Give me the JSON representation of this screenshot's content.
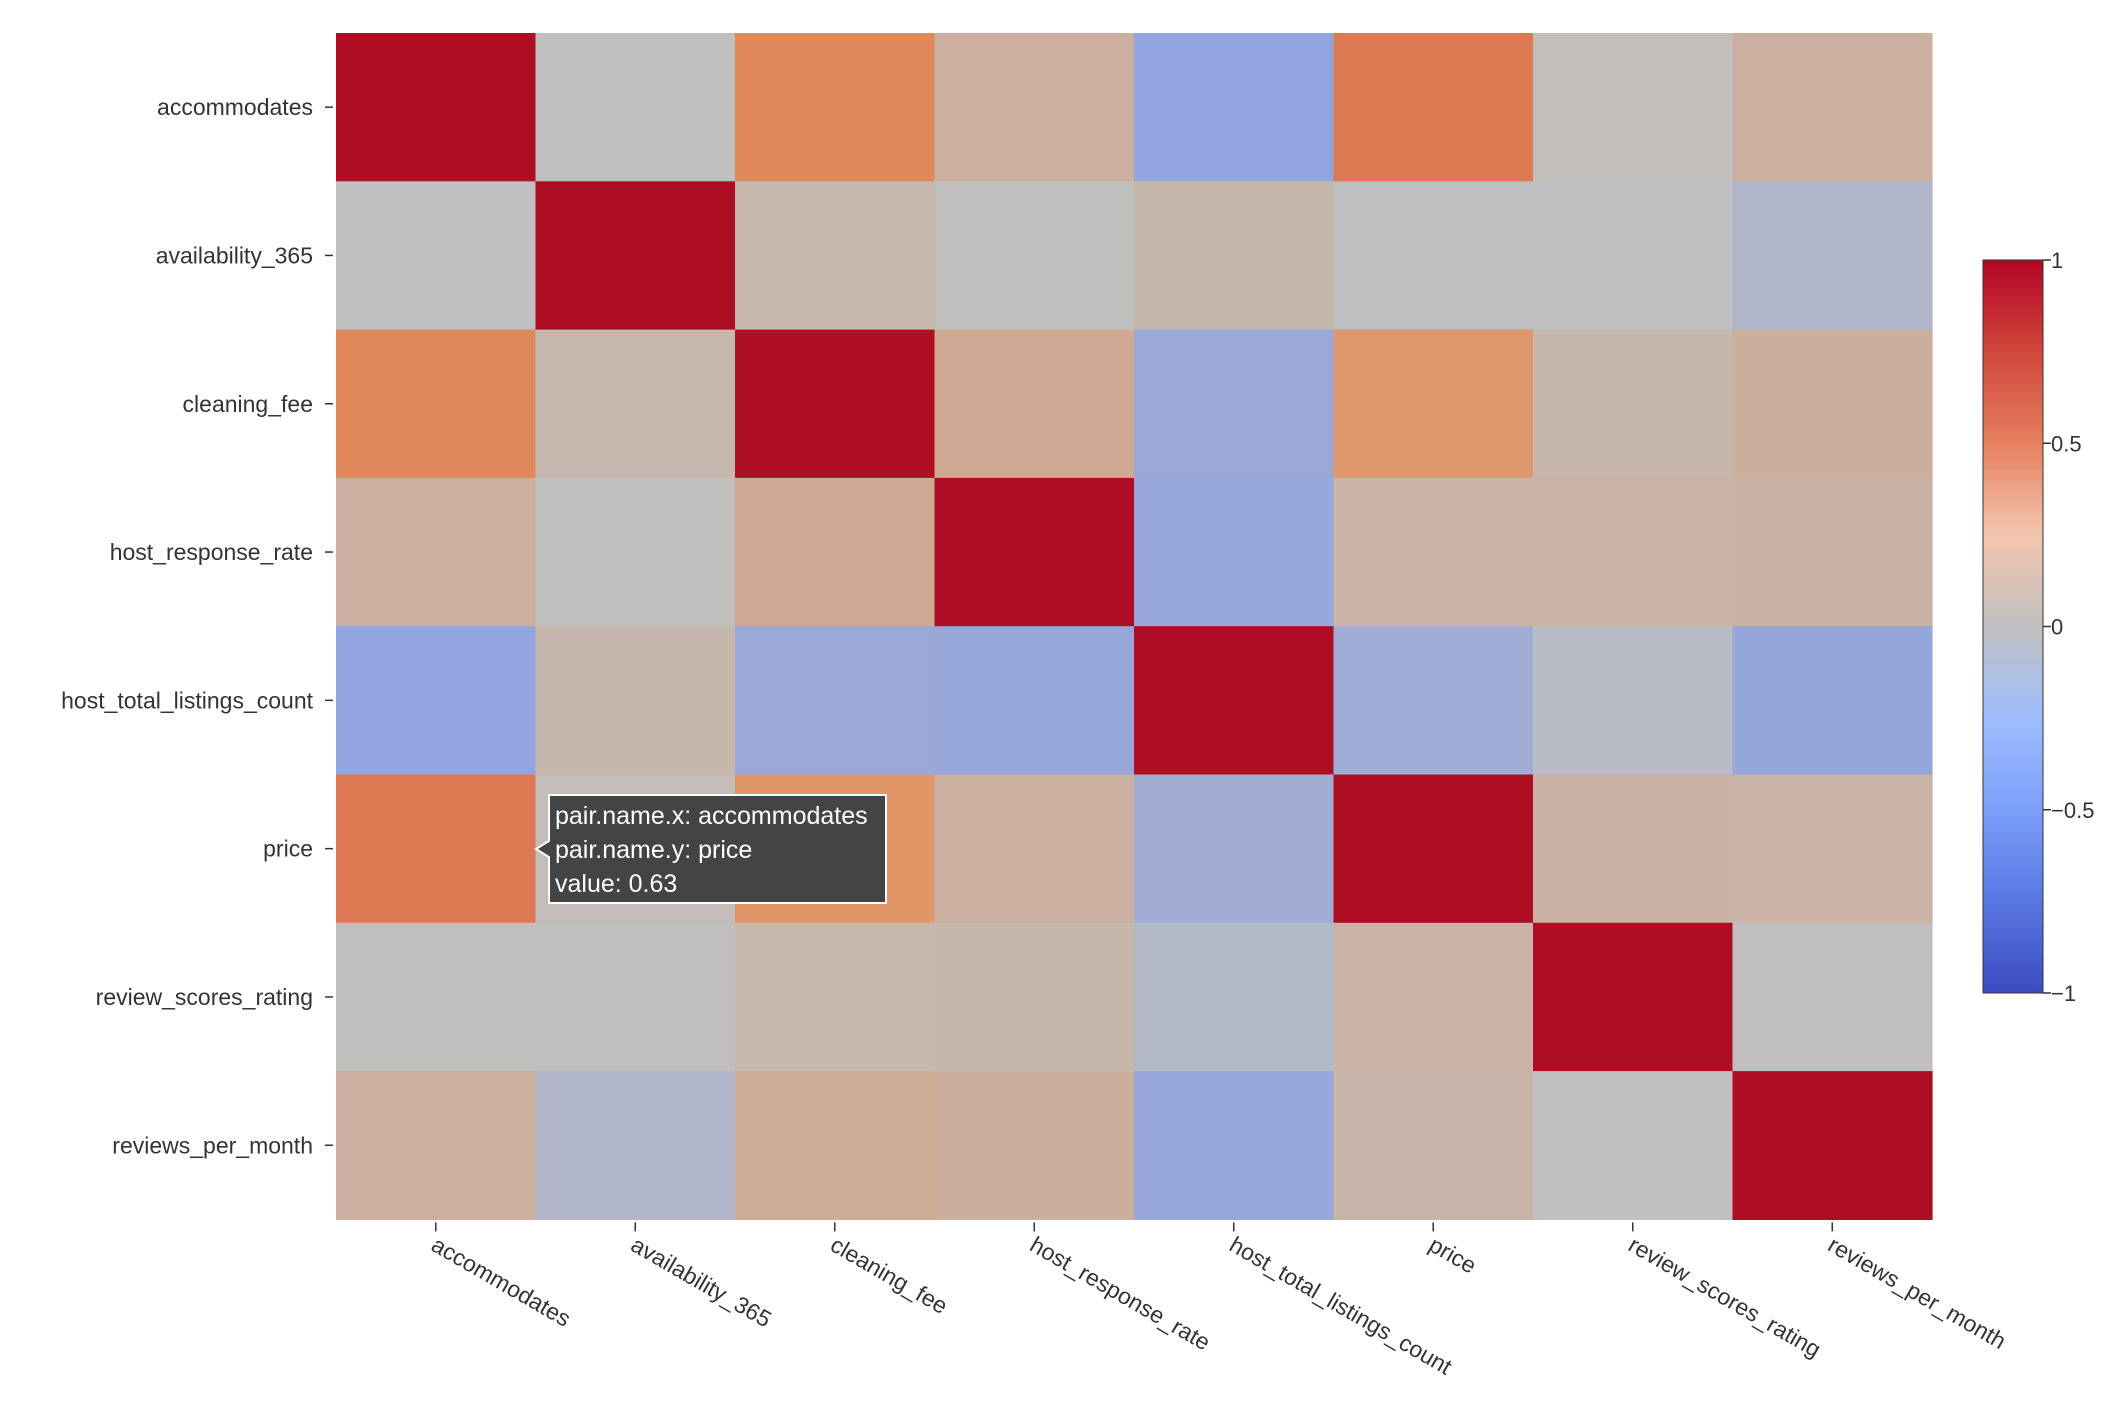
{
  "chart_data": {
    "type": "heatmap",
    "title": "",
    "xlabel": "",
    "ylabel": "",
    "variables": [
      "accommodates",
      "availability_365",
      "cleaning_fee",
      "host_response_rate",
      "host_total_listings_count",
      "price",
      "review_scores_rating",
      "reviews_per_month"
    ],
    "matrix": [
      [
        1.0,
        0.0,
        0.56,
        0.16,
        -0.28,
        0.63,
        0.02,
        0.15
      ],
      [
        0.0,
        1.0,
        0.08,
        0.01,
        0.09,
        -0.01,
        -0.01,
        -0.1
      ],
      [
        0.56,
        0.08,
        1.0,
        0.22,
        -0.22,
        0.44,
        0.1,
        0.17
      ],
      [
        0.16,
        0.01,
        0.22,
        1.0,
        -0.24,
        0.12,
        0.12,
        0.13
      ],
      [
        -0.28,
        0.09,
        -0.22,
        -0.24,
        1.0,
        -0.19,
        -0.04,
        -0.25
      ],
      [
        0.63,
        0.04,
        0.47,
        0.15,
        -0.18,
        1.0,
        0.14,
        0.12
      ],
      [
        0.01,
        0.01,
        0.08,
        0.1,
        -0.07,
        0.12,
        1.0,
        0.01
      ],
      [
        0.16,
        -0.09,
        0.19,
        0.17,
        -0.24,
        0.11,
        0.0,
        1.0
      ]
    ],
    "colorscale": {
      "name": "coolwarm",
      "range": [
        -1,
        1
      ],
      "ticks": [
        "1",
        "0.5",
        "0",
        "−0.5",
        "−1"
      ],
      "tick_values": [
        1,
        0.5,
        0,
        -0.5,
        -1
      ]
    },
    "tooltip": {
      "lines": [
        "pair.name.x: accommodates",
        "pair.name.y: price",
        "value: 0.63"
      ],
      "row": 5,
      "col": 0
    }
  }
}
